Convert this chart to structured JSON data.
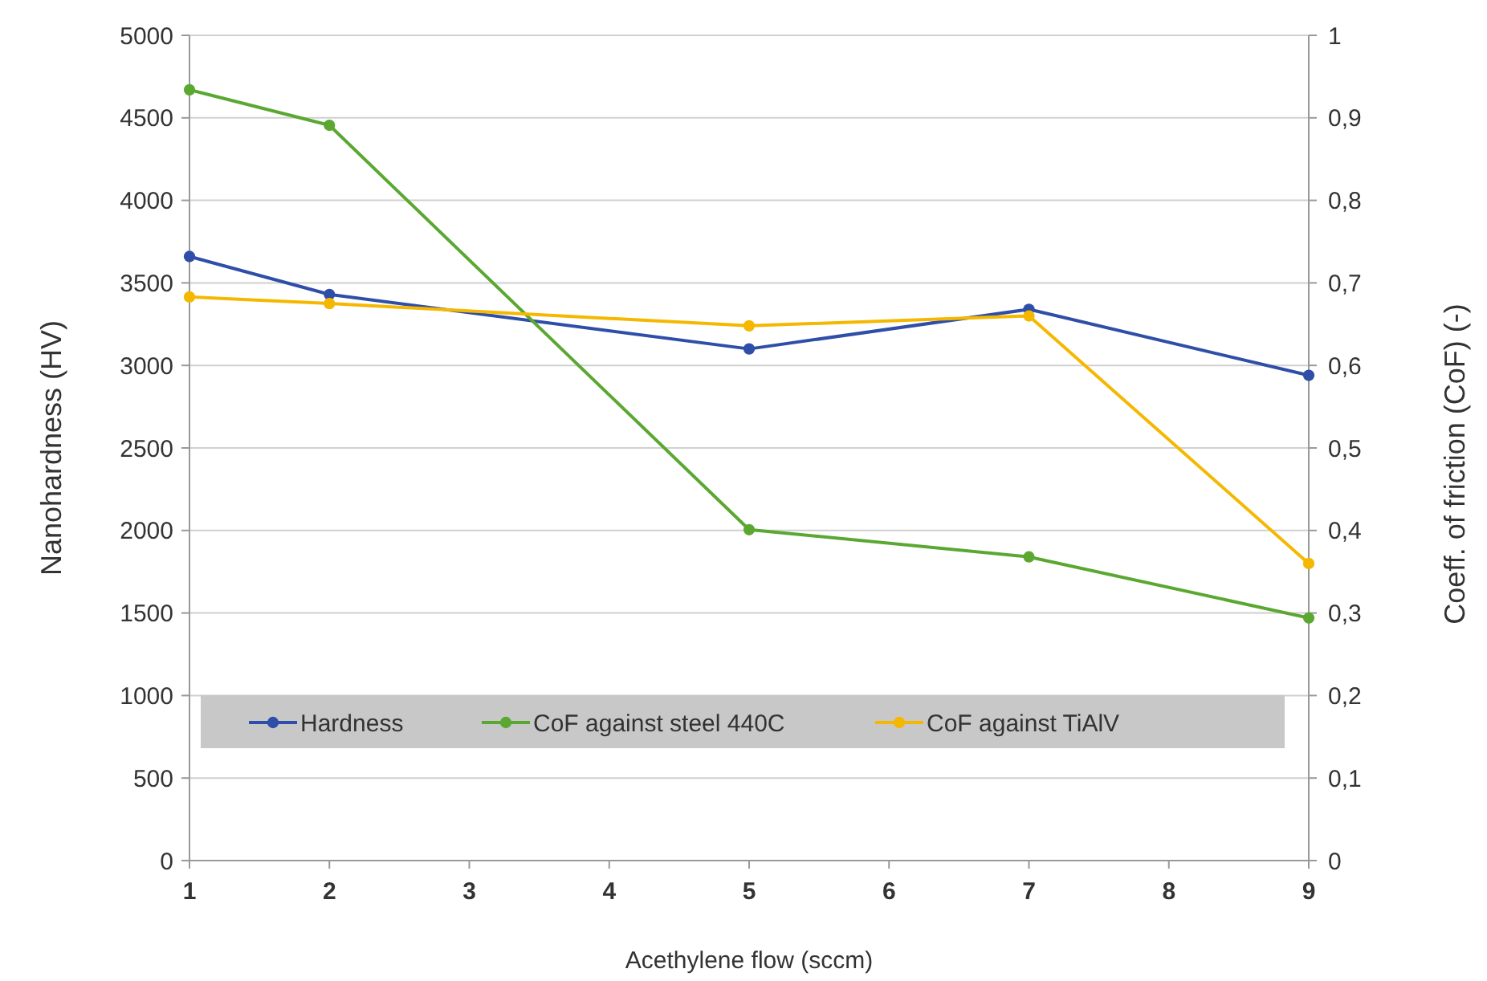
{
  "chart_data": {
    "type": "line",
    "xlabel": "Acethylene flow (sccm)",
    "ylabel": "Nanohardness (HV)",
    "y2label": "Coeff. of friction (CoF)  (-)",
    "x": [
      1,
      2,
      5,
      7,
      9
    ],
    "xlim": [
      1,
      9
    ],
    "xticks": [
      1,
      2,
      3,
      4,
      5,
      6,
      7,
      8,
      9
    ],
    "ylim": [
      0,
      5000
    ],
    "yticks": [
      0,
      500,
      1000,
      1500,
      2000,
      2500,
      3000,
      3500,
      4000,
      4500,
      5000
    ],
    "y2lim": [
      0,
      1
    ],
    "y2ticks": [
      0,
      {
        "value": 0.1,
        "label": "0,1"
      },
      {
        "value": 0.2,
        "label": "0,2"
      },
      {
        "value": 0.3,
        "label": "0,3"
      },
      {
        "value": 0.4,
        "label": "0,4"
      },
      {
        "value": 0.5,
        "label": "0,5"
      },
      {
        "value": 0.6,
        "label": "0,6"
      },
      {
        "value": 0.7,
        "label": "0,7"
      },
      {
        "value": 0.8,
        "label": "0,8"
      },
      {
        "value": 0.9,
        "label": "0,9"
      },
      1
    ],
    "grid": "y",
    "legend": "bottom",
    "marker": "circle",
    "series": [
      {
        "name": "Hardness",
        "color": "#2e4ea8",
        "values": [
          3660,
          3430,
          3100,
          3340,
          2940
        ]
      },
      {
        "name": "CoF against steel 440C",
        "color": "#5aa832",
        "axis": "y2",
        "values": [
          0.934,
          0.891,
          0.401,
          0.368,
          0.294
        ]
      },
      {
        "name": "CoF against TiAlV",
        "color": "#f5b800",
        "axis": "y2",
        "values": [
          0.683,
          0.675,
          0.648,
          0.66,
          0.36
        ]
      }
    ]
  }
}
